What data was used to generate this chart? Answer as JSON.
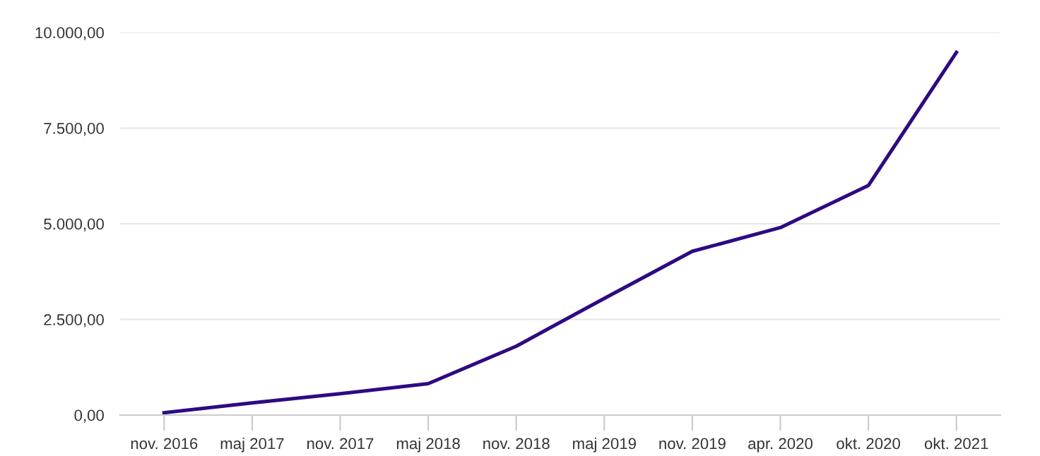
{
  "chart_data": {
    "type": "line",
    "categories": [
      "nov. 2016",
      "maj 2017",
      "nov. 2017",
      "maj 2018",
      "nov. 2018",
      "maj 2019",
      "nov. 2019",
      "apr. 2020",
      "okt. 2020",
      "okt. 2021"
    ],
    "series": [
      {
        "color": "#2e0a82",
        "values": [
          60,
          320,
          560,
          820,
          1800,
          3050,
          4280,
          4900,
          6000,
          9480
        ]
      }
    ],
    "ylim": [
      0,
      10000
    ],
    "yticks": [
      {
        "value": 0,
        "label": "0,00"
      },
      {
        "value": 2500,
        "label": "2.500,00"
      },
      {
        "value": 5000,
        "label": "5.000,00"
      },
      {
        "value": 7500,
        "label": "7.500,00"
      },
      {
        "value": 10000,
        "label": "10.000,00"
      }
    ],
    "grid": "y",
    "marker": "none",
    "line_style": "solid"
  }
}
